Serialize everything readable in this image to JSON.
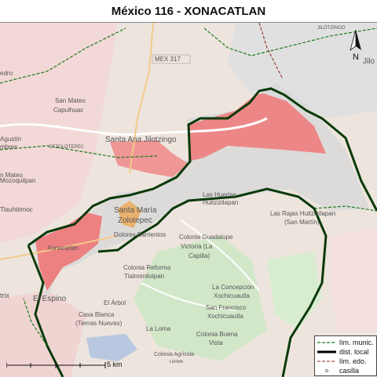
{
  "title": "México 116 - XONACATLAN",
  "map": {
    "labels": {
      "road_shield": "MEX 317",
      "santa_ana": "Santa Ana Jilotzingo",
      "san_mateo": "San Mateo",
      "capulhuac": "Capulhuac",
      "otzolotepec": "OTZOLOTEPEC",
      "jilotzingo": "JILOTZINGO",
      "santa_maria": "Santa María",
      "zolotepec": "Zolotepec",
      "dolores": "Dolores Barrientos",
      "xonacatlan": "Xonacatlán",
      "el_espino": "El Espino",
      "las_huertas": "Las Huertas",
      "huitzizilapan": "Huitzizilapan",
      "las_rajas": "Las Rajas Huitzizilapan",
      "san_martin": "(San Martín)",
      "colonia_guadalupe": "Colonia Guadalupe",
      "victoria": "Victoria (La",
      "capilla": "Capilla)",
      "colonia_reforma": "Colonia Reforma",
      "tlalmimilolpan": "Tlalmimilolpan",
      "la_concepcion": "La Concepción",
      "xochicuautla": "Xochicuautla",
      "san_francisco": "San Francisco",
      "xochicuautla2": "Xochicuautla",
      "el_arbol": "El Árbol",
      "casa_blanca": "Casa Blanca",
      "tierras_nuevas": "(Tierras Nuevas)",
      "la_loma": "La Loma",
      "colonia_buena": "Colonia Buena",
      "vista": "Vista",
      "colonia_agricola": "Colonia Agrícola",
      "lerma": "LERMA",
      "mozoquilpan": "Mozoquilpan",
      "tlauhtemoc": "Tlauhtémoc",
      "agustin": "Agustín",
      "mbres": "mbres",
      "edro": "edro",
      "trix": "trix",
      "jilo_edge": "Jilo",
      "n_mateo": "n Mateo"
    }
  },
  "north_arrow": {
    "label": "N"
  },
  "legend": [
    {
      "label": "lím. munic.",
      "symbol": "dashed-green-line"
    },
    {
      "label": "dist. local",
      "symbol": "thick-black-line"
    },
    {
      "label": "lím. edo.",
      "symbol": "dashed-darkred-line"
    },
    {
      "label": "casilla",
      "symbol": "small-circle"
    }
  ],
  "scale_bar": {
    "label": "5 km"
  },
  "colors": {
    "district_fill": "#d9d9d9",
    "section_fill": "#f08080",
    "district_border": "#000000",
    "municipal_border": "#1a7a1a"
  }
}
